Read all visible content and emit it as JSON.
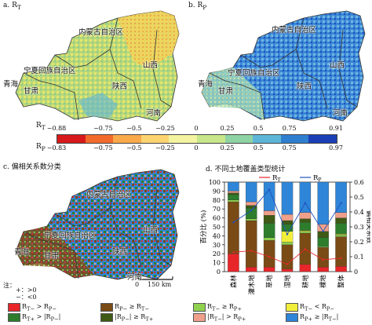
{
  "panels": {
    "a": {
      "title": "a. R",
      "sub": "T"
    },
    "b": {
      "title": "b. R",
      "sub": "P"
    },
    "c": {
      "title": "c. 偏相关系数分类"
    },
    "d": {
      "title": "d. 不同土地覆盖类型统计"
    }
  },
  "map_labels": {
    "inner_mongolia": "内蒙古自治区",
    "ningxia": "宁夏回族自治区",
    "qinghai": "青海",
    "gansu": "甘肃",
    "shaanxi": "陕西",
    "shanxi": "山西",
    "henan": "河南"
  },
  "colorbar": {
    "rt_label": "R",
    "rt_sub": "T",
    "rp_label": "R",
    "rp_sub": "P",
    "rt_ticks": [
      "−0.88",
      "−0.75",
      "−0.5",
      "−0.25",
      "0",
      "0.25",
      "0.5",
      "0.75",
      "0.91"
    ],
    "rp_ticks": [
      "−0.83",
      "−0.75",
      "−0.5",
      "−0.25",
      "0",
      "0.25",
      "0.5",
      "0.75",
      "0.97"
    ],
    "colors": [
      "#d7191c",
      "#f26a2b",
      "#f9a84a",
      "#fdd470",
      "#f4f4a0",
      "#c8e78a",
      "#8fd3a4",
      "#5db6d8",
      "#2f7fd0",
      "#1b3fb4"
    ]
  },
  "map_notes": {
    "note_label": "注：",
    "plus": "+：>0",
    "minus": "−：<0",
    "scale": "150 km",
    "scale_zero": "0"
  },
  "classification_legend": [
    {
      "label": "R_T− > R_P−",
      "color": "#e8262a"
    },
    {
      "label": "R_P− ≥ R_T−",
      "color": "#7a4b14"
    },
    {
      "label": "R_T− ≥ R_P+",
      "color": "#8fd14f"
    },
    {
      "label": "R_T− < R_P−",
      "color": "#f2ef3a"
    },
    {
      "label": "R_T+ > |R_P−|",
      "color": "#2d7d2d"
    },
    {
      "label": "|R_P−| ≥ R_T+",
      "color": "#3e5a14"
    },
    {
      "label": "|R_T−| > R_P+",
      "color": "#f0a08a"
    },
    {
      "label": "R_P+ ≥ |R_T−|",
      "color": "#2f86d8"
    }
  ],
  "chart_data": {
    "type": "bar",
    "stacked": true,
    "categories": [
      "森林",
      "灌木地",
      "草地",
      "湿地",
      "耕地",
      "裸地",
      "整体"
    ],
    "ylabel_left": "百分比 (%)",
    "ylabel_right": "偏相关系数",
    "ylim_left": [
      0,
      100
    ],
    "ylim_right": [
      0,
      0.6
    ],
    "left_ticks": [
      "0",
      "10",
      "20",
      "30",
      "40",
      "50",
      "60",
      "70",
      "80",
      "90",
      "100"
    ],
    "right_ticks": [
      "0",
      "0.1",
      "0.2",
      "0.3",
      "0.4",
      "0.5",
      "0.6"
    ],
    "stack_colors": [
      "#e8262a",
      "#7a4b14",
      "#8fd14f",
      "#f2ef3a",
      "#2d7d2d",
      "#3e5a14",
      "#f0a08a",
      "#2f86d8"
    ],
    "stacks": [
      [
        20,
        58,
        2,
        0,
        6,
        2,
        2,
        10
      ],
      [
        5,
        52,
        2,
        0,
        12,
        3,
        4,
        22
      ],
      [
        5,
        30,
        3,
        0,
        16,
        9,
        5,
        32
      ],
      [
        3,
        27,
        3,
        12,
        8,
        4,
        7,
        36
      ],
      [
        8,
        35,
        2,
        1,
        9,
        4,
        7,
        34
      ],
      [
        5,
        22,
        1,
        0,
        10,
        7,
        8,
        47
      ],
      [
        6,
        33,
        2,
        1,
        12,
        6,
        6,
        34
      ]
    ],
    "series": [
      {
        "name": "R_T",
        "color": "#e8262a",
        "values": [
          0.13,
          0.14,
          0.1,
          0.05,
          0.15,
          0.08,
          0.09
        ]
      },
      {
        "name": "R_P",
        "color": "#1f4fbf",
        "values": [
          0.33,
          0.41,
          0.55,
          0.25,
          0.46,
          0.27,
          0.46
        ]
      }
    ],
    "legend": [
      "R_T",
      "R_P"
    ]
  }
}
